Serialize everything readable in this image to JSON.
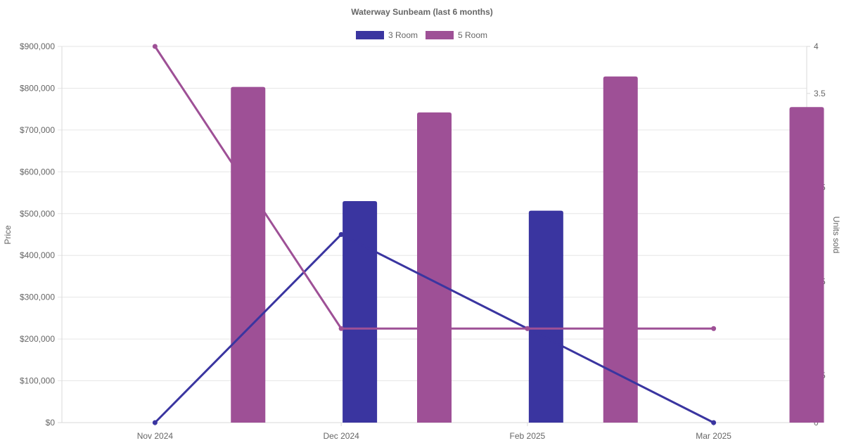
{
  "chart_data": {
    "type": "bar",
    "title": "Waterway Sunbeam (last 6 months)",
    "categories": [
      "Nov 2024",
      "Dec 2024",
      "Feb 2025",
      "Mar 2025"
    ],
    "legend_position": "top",
    "grid": true,
    "y_left": {
      "label": "Price",
      "range": [
        0,
        900000
      ],
      "ticks": [
        "$0",
        "$100,000",
        "$200,000",
        "$300,000",
        "$400,000",
        "$500,000",
        "$600,000",
        "$700,000",
        "$800,000",
        "$900,000"
      ]
    },
    "y_right": {
      "label": "Units sold",
      "range": [
        0,
        4
      ],
      "ticks": [
        "0",
        "0.5",
        "1",
        "1.5",
        "2",
        "2.5",
        "3",
        "3.5",
        "4"
      ]
    },
    "series": [
      {
        "name": "3 Room",
        "color": "#3a35a0",
        "price": [
          null,
          530000,
          507000,
          null
        ],
        "units_sold": [
          0,
          2,
          1,
          0
        ]
      },
      {
        "name": "5 Room",
        "color": "#9e5096",
        "price": [
          803000,
          742000,
          828000,
          755000
        ],
        "units_sold": [
          4,
          1,
          1,
          1
        ]
      }
    ]
  }
}
